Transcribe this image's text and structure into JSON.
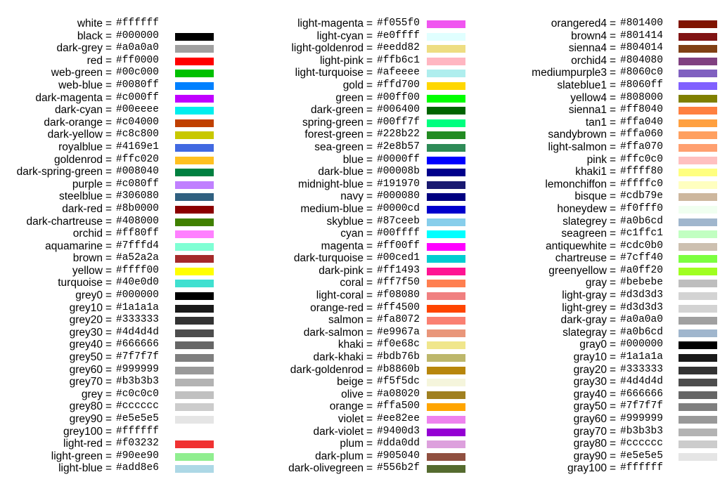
{
  "columns": [
    {
      "entries": [
        {
          "name": "white",
          "hex": "#ffffff"
        },
        {
          "name": "black",
          "hex": "#000000"
        },
        {
          "name": "dark-grey",
          "hex": "#a0a0a0"
        },
        {
          "name": "red",
          "hex": "#ff0000"
        },
        {
          "name": "web-green",
          "hex": "#00c000"
        },
        {
          "name": "web-blue",
          "hex": "#0080ff"
        },
        {
          "name": "dark-magenta",
          "hex": "#c000ff"
        },
        {
          "name": "dark-cyan",
          "hex": "#00eeee"
        },
        {
          "name": "dark-orange",
          "hex": "#c04000"
        },
        {
          "name": "dark-yellow",
          "hex": "#c8c800"
        },
        {
          "name": "royalblue",
          "hex": "#4169e1"
        },
        {
          "name": "goldenrod",
          "hex": "#ffc020"
        },
        {
          "name": "dark-spring-green",
          "hex": "#008040"
        },
        {
          "name": "purple",
          "hex": "#c080ff"
        },
        {
          "name": "steelblue",
          "hex": "#306080"
        },
        {
          "name": "dark-red",
          "hex": "#8b0000"
        },
        {
          "name": "dark-chartreuse",
          "hex": "#408000"
        },
        {
          "name": "orchid",
          "hex": "#ff80ff"
        },
        {
          "name": "aquamarine",
          "hex": "#7fffd4"
        },
        {
          "name": "brown",
          "hex": "#a52a2a"
        },
        {
          "name": "yellow",
          "hex": "#ffff00"
        },
        {
          "name": "turquoise",
          "hex": "#40e0d0"
        },
        {
          "name": "grey0",
          "hex": "#000000"
        },
        {
          "name": "grey10",
          "hex": "#1a1a1a"
        },
        {
          "name": "grey20",
          "hex": "#333333"
        },
        {
          "name": "grey30",
          "hex": "#4d4d4d"
        },
        {
          "name": "grey40",
          "hex": "#666666"
        },
        {
          "name": "grey50",
          "hex": "#7f7f7f"
        },
        {
          "name": "grey60",
          "hex": "#999999"
        },
        {
          "name": "grey70",
          "hex": "#b3b3b3"
        },
        {
          "name": "grey",
          "hex": "#c0c0c0"
        },
        {
          "name": "grey80",
          "hex": "#cccccc"
        },
        {
          "name": "grey90",
          "hex": "#e5e5e5"
        },
        {
          "name": "grey100",
          "hex": "#ffffff"
        },
        {
          "name": "light-red",
          "hex": "#f03232"
        },
        {
          "name": "light-green",
          "hex": "#90ee90"
        },
        {
          "name": "light-blue",
          "hex": "#add8e6"
        }
      ]
    },
    {
      "entries": [
        {
          "name": "light-magenta",
          "hex": "#f055f0"
        },
        {
          "name": "light-cyan",
          "hex": "#e0ffff"
        },
        {
          "name": "light-goldenrod",
          "hex": "#eedd82"
        },
        {
          "name": "light-pink",
          "hex": "#ffb6c1"
        },
        {
          "name": "light-turquoise",
          "hex": "#afeeee"
        },
        {
          "name": "gold",
          "hex": "#ffd700"
        },
        {
          "name": "green",
          "hex": "#00ff00"
        },
        {
          "name": "dark-green",
          "hex": "#006400"
        },
        {
          "name": "spring-green",
          "hex": "#00ff7f"
        },
        {
          "name": "forest-green",
          "hex": "#228b22"
        },
        {
          "name": "sea-green",
          "hex": "#2e8b57"
        },
        {
          "name": "blue",
          "hex": "#0000ff"
        },
        {
          "name": "dark-blue",
          "hex": "#00008b"
        },
        {
          "name": "midnight-blue",
          "hex": "#191970"
        },
        {
          "name": "navy",
          "hex": "#000080"
        },
        {
          "name": "medium-blue",
          "hex": "#0000cd"
        },
        {
          "name": "skyblue",
          "hex": "#87ceeb"
        },
        {
          "name": "cyan",
          "hex": "#00ffff"
        },
        {
          "name": "magenta",
          "hex": "#ff00ff"
        },
        {
          "name": "dark-turquoise",
          "hex": "#00ced1"
        },
        {
          "name": "dark-pink",
          "hex": "#ff1493"
        },
        {
          "name": "coral",
          "hex": "#ff7f50"
        },
        {
          "name": "light-coral",
          "hex": "#f08080"
        },
        {
          "name": "orange-red",
          "hex": "#ff4500"
        },
        {
          "name": "salmon",
          "hex": "#fa8072"
        },
        {
          "name": "dark-salmon",
          "hex": "#e9967a"
        },
        {
          "name": "khaki",
          "hex": "#f0e68c"
        },
        {
          "name": "dark-khaki",
          "hex": "#bdb76b"
        },
        {
          "name": "dark-goldenrod",
          "hex": "#b8860b"
        },
        {
          "name": "beige",
          "hex": "#f5f5dc"
        },
        {
          "name": "olive",
          "hex": "#a08020"
        },
        {
          "name": "orange",
          "hex": "#ffa500"
        },
        {
          "name": "violet",
          "hex": "#ee82ee"
        },
        {
          "name": "dark-violet",
          "hex": "#9400d3"
        },
        {
          "name": "plum",
          "hex": "#dda0dd"
        },
        {
          "name": "dark-plum",
          "hex": "#905040"
        },
        {
          "name": "dark-olivegreen",
          "hex": "#556b2f"
        }
      ]
    },
    {
      "entries": [
        {
          "name": "orangered4",
          "hex": "#801400"
        },
        {
          "name": "brown4",
          "hex": "#801414"
        },
        {
          "name": "sienna4",
          "hex": "#804014"
        },
        {
          "name": "orchid4",
          "hex": "#804080"
        },
        {
          "name": "mediumpurple3",
          "hex": "#8060c0"
        },
        {
          "name": "slateblue1",
          "hex": "#8060ff"
        },
        {
          "name": "yellow4",
          "hex": "#808000"
        },
        {
          "name": "sienna1",
          "hex": "#ff8040"
        },
        {
          "name": "tan1",
          "hex": "#ffa040"
        },
        {
          "name": "sandybrown",
          "hex": "#ffa060"
        },
        {
          "name": "light-salmon",
          "hex": "#ffa070"
        },
        {
          "name": "pink",
          "hex": "#ffc0c0"
        },
        {
          "name": "khaki1",
          "hex": "#ffff80"
        },
        {
          "name": "lemonchiffon",
          "hex": "#ffffc0"
        },
        {
          "name": "bisque",
          "hex": "#cdb79e"
        },
        {
          "name": "honeydew",
          "hex": "#f0fff0"
        },
        {
          "name": "slategrey",
          "hex": "#a0b6cd"
        },
        {
          "name": "seagreen",
          "hex": "#c1ffc1"
        },
        {
          "name": "antiquewhite",
          "hex": "#cdc0b0"
        },
        {
          "name": "chartreuse",
          "hex": "#7cff40"
        },
        {
          "name": "greenyellow",
          "hex": "#a0ff20"
        },
        {
          "name": "gray",
          "hex": "#bebebe"
        },
        {
          "name": "light-gray",
          "hex": "#d3d3d3"
        },
        {
          "name": "light-grey",
          "hex": "#d3d3d3"
        },
        {
          "name": "dark-gray",
          "hex": "#a0a0a0"
        },
        {
          "name": "slategray",
          "hex": "#a0b6cd"
        },
        {
          "name": "gray0",
          "hex": "#000000"
        },
        {
          "name": "gray10",
          "hex": "#1a1a1a"
        },
        {
          "name": "gray20",
          "hex": "#333333"
        },
        {
          "name": "gray30",
          "hex": "#4d4d4d"
        },
        {
          "name": "gray40",
          "hex": "#666666"
        },
        {
          "name": "gray50",
          "hex": "#7f7f7f"
        },
        {
          "name": "gray60",
          "hex": "#999999"
        },
        {
          "name": "gray70",
          "hex": "#b3b3b3"
        },
        {
          "name": "gray80",
          "hex": "#cccccc"
        },
        {
          "name": "gray90",
          "hex": "#e5e5e5"
        },
        {
          "name": "gray100",
          "hex": "#ffffff"
        }
      ]
    }
  ]
}
